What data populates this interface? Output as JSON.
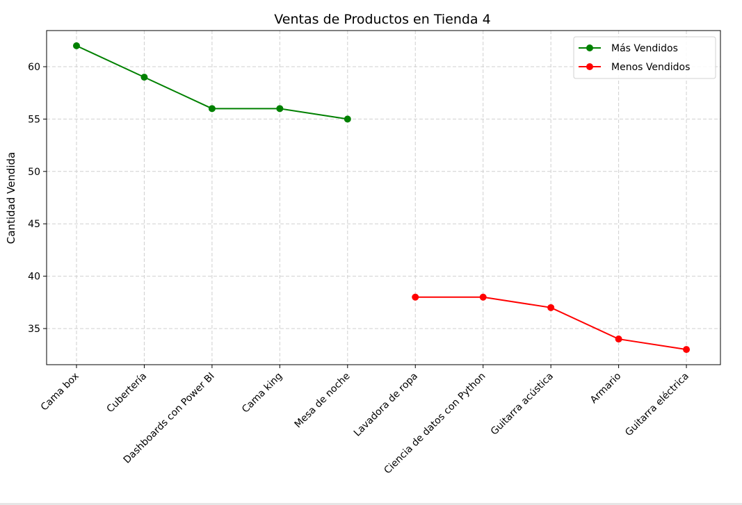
{
  "chart_data": {
    "type": "line",
    "title": "Ventas de Productos en Tienda 4",
    "xlabel": "",
    "ylabel": "Cantidad Vendida",
    "categories": [
      "Cama box",
      "Cubertería",
      "Dashboards con Power BI",
      "Cama king",
      "Mesa de noche",
      "Lavadora de ropa",
      "Ciencia de datos con Python",
      "Guitarra acústica",
      "Armario",
      "Guitarra eléctrica"
    ],
    "series": [
      {
        "name": "Más Vendidos",
        "color": "#008000",
        "x": [
          "Cama box",
          "Cubertería",
          "Dashboards con Power BI",
          "Cama king",
          "Mesa de noche"
        ],
        "values": [
          62,
          59,
          56,
          56,
          55
        ]
      },
      {
        "name": "Menos Vendidos",
        "color": "#ff0000",
        "x": [
          "Lavadora de ropa",
          "Ciencia de datos con Python",
          "Guitarra acústica",
          "Armario",
          "Guitarra eléctrica"
        ],
        "values": [
          38,
          38,
          37,
          34,
          33
        ]
      }
    ],
    "yticks": [
      35,
      40,
      45,
      50,
      55,
      60
    ],
    "ylim": [
      31.55,
      63.45
    ],
    "grid": true,
    "legend_position": "top-right"
  }
}
